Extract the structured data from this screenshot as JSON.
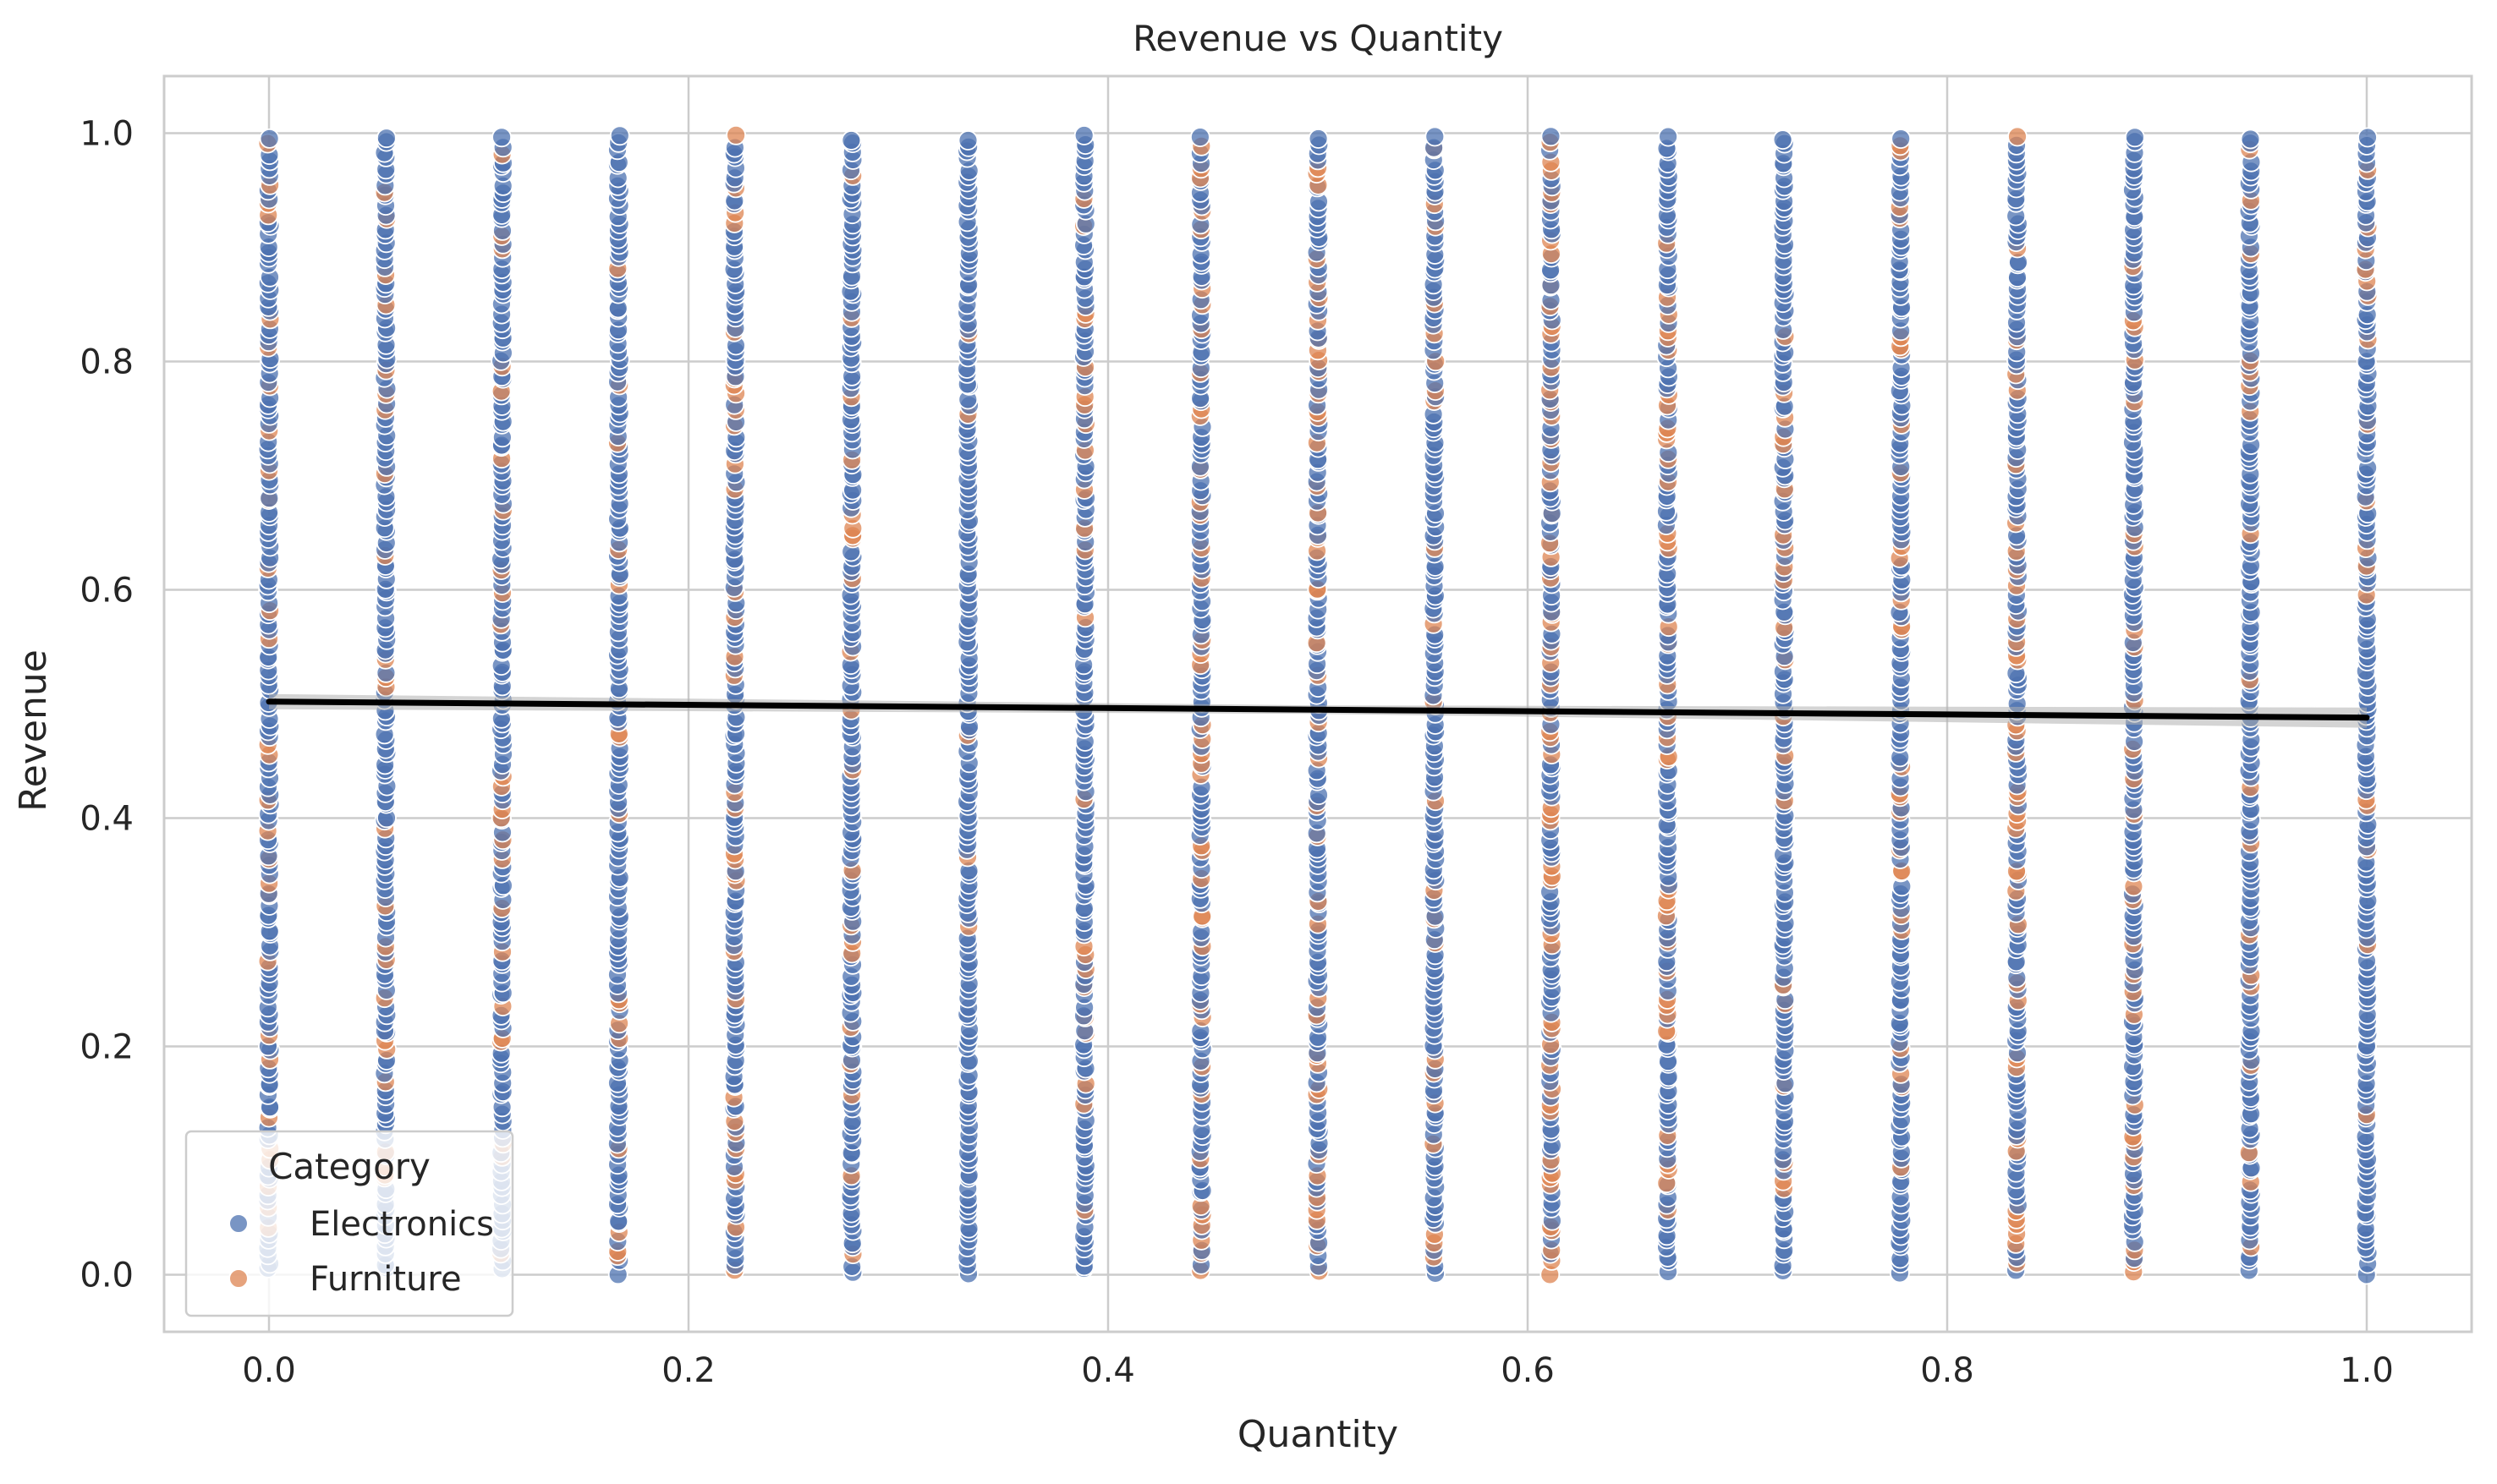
{
  "chart_data": {
    "type": "scatter",
    "title": "Revenue vs Quantity",
    "xlabel": "Quantity",
    "ylabel": "Revenue",
    "xlim": [
      -0.05,
      1.05
    ],
    "ylim": [
      -0.05,
      1.05
    ],
    "xticks": [
      0.0,
      0.2,
      0.4,
      0.6,
      0.8,
      1.0
    ],
    "xtick_labels": [
      "0.0",
      "0.2",
      "0.4",
      "0.6",
      "0.8",
      "1.0"
    ],
    "yticks": [
      0.0,
      0.2,
      0.4,
      0.6,
      0.8,
      1.0
    ],
    "ytick_labels": [
      "0.0",
      "0.2",
      "0.4",
      "0.6",
      "0.8",
      "1.0"
    ],
    "grid": true,
    "x_values": [
      0.0,
      0.0556,
      0.1111,
      0.1667,
      0.2222,
      0.2778,
      0.3333,
      0.3889,
      0.4444,
      0.5,
      0.5556,
      0.6111,
      0.6667,
      0.7222,
      0.7778,
      0.8333,
      0.8889,
      0.9444,
      1.0
    ],
    "y_range": [
      0.0,
      1.0
    ],
    "series": [
      {
        "name": "Electronics",
        "color": "#4c72b0"
      },
      {
        "name": "Furniture",
        "color": "#dd8452"
      }
    ],
    "furniture_density": [
      0.18,
      0.18,
      0.12,
      0.12,
      0.22,
      0.14,
      0.08,
      0.14,
      0.3,
      0.25,
      0.12,
      0.28,
      0.2,
      0.14,
      0.22,
      0.22,
      0.16,
      0.14,
      0.08
    ],
    "regression_line": {
      "x": [
        0.0,
        1.0
      ],
      "y": [
        0.502,
        0.488
      ],
      "color": "#000000"
    },
    "legend": {
      "title": "Category",
      "entries": [
        "Electronics",
        "Furniture"
      ],
      "location": "lower-left"
    }
  }
}
